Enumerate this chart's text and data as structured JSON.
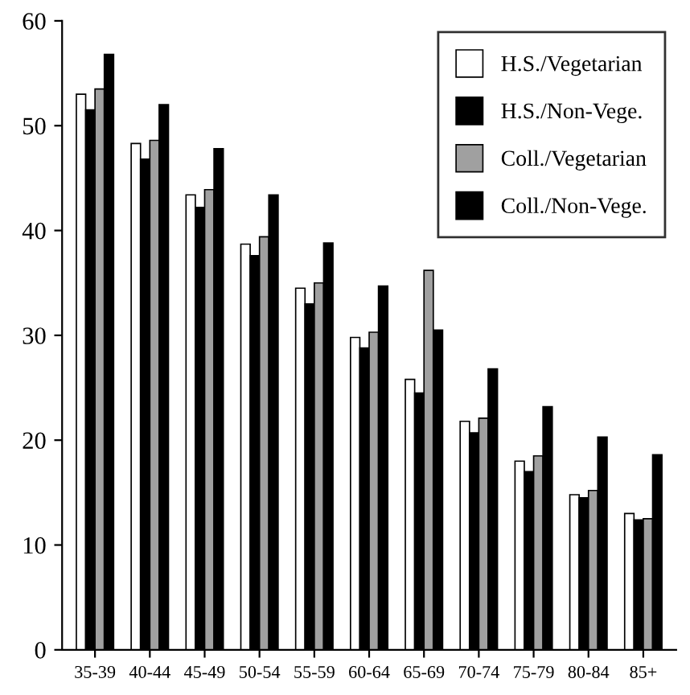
{
  "chart_data": {
    "type": "bar",
    "categories": [
      "35-39",
      "40-44",
      "45-49",
      "50-54",
      "55-59",
      "60-64",
      "65-69",
      "70-74",
      "75-79",
      "80-84",
      "85+"
    ],
    "series": [
      {
        "name": "H.S./Vegetarian",
        "color": "#ffffff",
        "values": [
          53,
          48.3,
          43.4,
          38.7,
          34.5,
          29.8,
          25.8,
          21.8,
          18,
          14.8,
          13
        ]
      },
      {
        "name": "H.S./Non-Vege.",
        "color": "#000000",
        "values": [
          51.5,
          46.8,
          42.2,
          37.6,
          33,
          28.8,
          24.5,
          20.7,
          17,
          14.5,
          12.4
        ]
      },
      {
        "name": "Coll./Vegetarian",
        "color": "#a0a0a0",
        "values": [
          53.5,
          48.6,
          43.9,
          39.4,
          35,
          30.3,
          36.2,
          22.1,
          18.5,
          15.2,
          12.5
        ]
      },
      {
        "name": "Coll./Non-Vege.",
        "color": "#000000",
        "values": [
          56.8,
          52,
          47.8,
          43.4,
          38.8,
          34.7,
          30.5,
          26.8,
          23.2,
          20.3,
          18.6
        ]
      }
    ],
    "ylim": [
      0,
      60
    ],
    "yticks": [
      0,
      10,
      20,
      30,
      40,
      50,
      60
    ],
    "grid": false,
    "legend": "top right"
  }
}
